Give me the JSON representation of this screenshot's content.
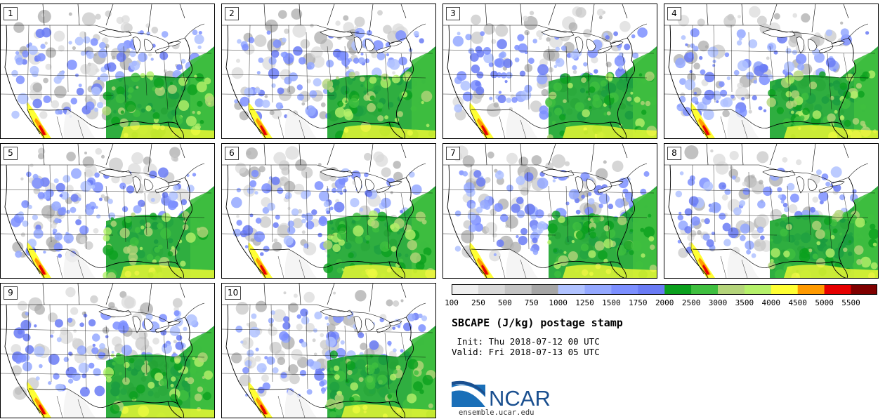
{
  "panels": [
    {
      "label": "1"
    },
    {
      "label": "2"
    },
    {
      "label": "3"
    },
    {
      "label": "4"
    },
    {
      "label": "5"
    },
    {
      "label": "6"
    },
    {
      "label": "7"
    },
    {
      "label": "8"
    },
    {
      "label": "9"
    },
    {
      "label": "10"
    }
  ],
  "colorbar": {
    "colors": [
      "#efefef",
      "#d9d9d9",
      "#c4c4c4",
      "#a6a6a6",
      "#b0c2ff",
      "#94a8ff",
      "#7c8fff",
      "#6a7bf5",
      "#0ba01e",
      "#3fbf3f",
      "#b4d47a",
      "#b5f06a",
      "#ffff33",
      "#ff9a00",
      "#e60000",
      "#7f0000"
    ],
    "ticks": [
      "100",
      "250",
      "500",
      "750",
      "1000",
      "1250",
      "1500",
      "1750",
      "2000",
      "2500",
      "3000",
      "3500",
      "4000",
      "4500",
      "5000",
      "5500"
    ]
  },
  "title": "SBCAPE (J/kg) postage stamp",
  "init_line": " Init: Thu 2018-07-12 00 UTC",
  "valid_line": "Valid: Fri 2018-07-13 05 UTC",
  "logo": {
    "text": "NCAR",
    "url": "ensemble.ucar.edu",
    "colors": {
      "blue": "#1a4f8f",
      "light_blue": "#2f7fc4"
    }
  }
}
